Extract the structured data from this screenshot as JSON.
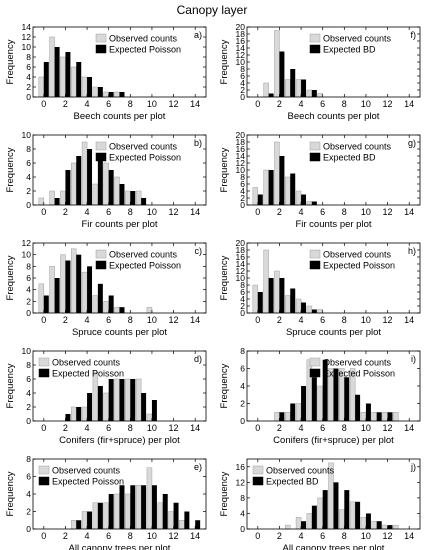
{
  "figure_title": "Canopy layer",
  "colors": {
    "observed": "#d9d9d9",
    "expected": "#000000",
    "frame": "#000000"
  },
  "chart_data": [
    {
      "type": "bar",
      "panel_label": "a)",
      "xlabel": "Beech counts per plot",
      "ylabel": "Frequency",
      "xlim": [
        -1,
        15
      ],
      "ylim": [
        0,
        14
      ],
      "xticks": [
        0,
        2,
        4,
        6,
        8,
        10,
        12,
        14
      ],
      "yticks": [
        0,
        2,
        4,
        6,
        8,
        10,
        12,
        14
      ],
      "legend_position": "top-right",
      "x": [
        0,
        1,
        2,
        3,
        4,
        5,
        6,
        7,
        8
      ],
      "series": [
        {
          "name": "Observed counts",
          "values": [
            4,
            12,
            8,
            6,
            4,
            2,
            1,
            1,
            0
          ]
        },
        {
          "name": "Expected Poisson",
          "values": [
            7,
            10,
            9,
            7,
            4,
            2,
            1,
            1,
            0
          ]
        }
      ]
    },
    {
      "type": "bar",
      "panel_label": "f)",
      "xlabel": "Beech counts per plot",
      "ylabel": "Frequency",
      "xlim": [
        -1,
        15
      ],
      "ylim": [
        0,
        20
      ],
      "xticks": [
        0,
        2,
        4,
        6,
        8,
        10,
        12,
        14
      ],
      "yticks": [
        0,
        2,
        4,
        6,
        8,
        10,
        12,
        14,
        16,
        18,
        20
      ],
      "legend_position": "top-right",
      "x": [
        0,
        1,
        2,
        3,
        4,
        5,
        6,
        7
      ],
      "series": [
        {
          "name": "Observed counts",
          "values": [
            0,
            4,
            19,
            5,
            5,
            2,
            1,
            0
          ]
        },
        {
          "name": "Expected BD",
          "values": [
            0,
            1,
            13,
            8,
            5,
            2,
            0,
            0
          ]
        }
      ]
    },
    {
      "type": "bar",
      "panel_label": "b)",
      "xlabel": "Fir counts per plot",
      "ylabel": "Frequency",
      "xlim": [
        -1,
        15
      ],
      "ylim": [
        0,
        10
      ],
      "xticks": [
        0,
        2,
        4,
        6,
        8,
        10,
        12,
        14
      ],
      "yticks": [
        0,
        2,
        4,
        6,
        8,
        10
      ],
      "legend_position": "top-right",
      "x": [
        0,
        1,
        2,
        3,
        4,
        5,
        6,
        7,
        8,
        9,
        10
      ],
      "series": [
        {
          "name": "Observed counts",
          "values": [
            1,
            2,
            2,
            6,
            9,
            3,
            6,
            4,
            2,
            2,
            0
          ]
        },
        {
          "name": "Expected Poisson",
          "values": [
            0,
            1,
            5,
            7,
            8,
            7,
            5,
            3,
            2,
            1,
            0
          ]
        }
      ]
    },
    {
      "type": "bar",
      "panel_label": "g)",
      "xlabel": "Fir counts per plot",
      "ylabel": "Frequency",
      "xlim": [
        -1,
        15
      ],
      "ylim": [
        0,
        20
      ],
      "xticks": [
        0,
        2,
        4,
        6,
        8,
        10,
        12,
        14
      ],
      "yticks": [
        0,
        2,
        4,
        6,
        8,
        10,
        12,
        14,
        16,
        18,
        20
      ],
      "legend_position": "top-right",
      "x": [
        0,
        1,
        2,
        3,
        4,
        5,
        6
      ],
      "series": [
        {
          "name": "Observed counts",
          "values": [
            5,
            10,
            18,
            8,
            4,
            1,
            0
          ]
        },
        {
          "name": "Expected BD",
          "values": [
            3,
            10,
            14,
            9,
            3,
            1,
            0
          ]
        }
      ]
    },
    {
      "type": "bar",
      "panel_label": "c)",
      "xlabel": "Spruce counts per plot",
      "ylabel": "Frequency",
      "xlim": [
        -1,
        15
      ],
      "ylim": [
        0,
        12
      ],
      "xticks": [
        0,
        2,
        4,
        6,
        8,
        10,
        12,
        14
      ],
      "yticks": [
        0,
        2,
        4,
        6,
        8,
        10,
        12
      ],
      "legend_position": "top-right",
      "x": [
        0,
        1,
        2,
        3,
        4,
        5,
        6,
        7,
        8,
        9,
        10
      ],
      "series": [
        {
          "name": "Observed counts",
          "values": [
            5,
            8,
            10,
            11,
            7,
            3,
            2,
            1,
            0,
            0,
            1
          ]
        },
        {
          "name": "Expected Poisson",
          "values": [
            3,
            6,
            9,
            10,
            8,
            5,
            3,
            1,
            0,
            0,
            0
          ]
        }
      ]
    },
    {
      "type": "bar",
      "panel_label": "h)",
      "xlabel": "Spruce counts per plot",
      "ylabel": "Frequency",
      "xlim": [
        -1,
        15
      ],
      "ylim": [
        0,
        20
      ],
      "xticks": [
        0,
        2,
        4,
        6,
        8,
        10,
        12,
        14
      ],
      "yticks": [
        0,
        2,
        4,
        6,
        8,
        10,
        12,
        14,
        16,
        18,
        20
      ],
      "legend_position": "top-right",
      "x": [
        0,
        1,
        2,
        3,
        4,
        5,
        6,
        7
      ],
      "series": [
        {
          "name": "Observed counts",
          "values": [
            8,
            18,
            12,
            5,
            4,
            2,
            1,
            0
          ]
        },
        {
          "name": "Expected Poisson",
          "values": [
            6,
            10,
            10,
            7,
            3,
            1,
            0,
            0
          ]
        }
      ]
    },
    {
      "type": "bar",
      "panel_label": "d)",
      "xlabel": "Conifers (fir+spruce) per plot",
      "ylabel": "Frequency",
      "xlim": [
        -1,
        15
      ],
      "ylim": [
        0,
        10
      ],
      "xticks": [
        0,
        2,
        4,
        6,
        8,
        10,
        12,
        14
      ],
      "yticks": [
        0,
        2,
        4,
        6,
        8,
        10
      ],
      "legend_position": "top-left",
      "x": [
        2,
        3,
        4,
        5,
        6,
        7,
        8,
        9,
        10,
        11
      ],
      "series": [
        {
          "name": "Observed counts",
          "values": [
            0,
            2,
            2,
            7,
            4,
            6,
            6,
            6,
            1,
            0
          ]
        },
        {
          "name": "Expected Poisson",
          "values": [
            1,
            2,
            4,
            5,
            6,
            6,
            6,
            4,
            3,
            0
          ]
        }
      ]
    },
    {
      "type": "bar",
      "panel_label": "i)",
      "xlabel": "Conifers (fir+spruce) per plot",
      "ylabel": "Frequency",
      "xlim": [
        -1,
        15
      ],
      "ylim": [
        0,
        8
      ],
      "xticks": [
        0,
        2,
        4,
        6,
        8,
        10,
        12,
        14
      ],
      "yticks": [
        0,
        2,
        4,
        6,
        8
      ],
      "legend_position": "top-right",
      "x": [
        2,
        3,
        4,
        5,
        6,
        7,
        8,
        9,
        10,
        11,
        12,
        13
      ],
      "series": [
        {
          "name": "Observed counts",
          "values": [
            1,
            1,
            2,
            7,
            4,
            6,
            6,
            6,
            1,
            1,
            1,
            1
          ]
        },
        {
          "name": "Expected Poisson",
          "values": [
            1,
            2,
            4,
            5,
            7,
            6,
            5,
            3,
            2,
            1,
            1,
            0
          ]
        }
      ]
    },
    {
      "type": "bar",
      "panel_label": "e)",
      "xlabel": "All canopy trees per plot",
      "ylabel": "Frequency",
      "xlim": [
        -1,
        15
      ],
      "ylim": [
        0,
        8
      ],
      "xticks": [
        0,
        2,
        4,
        6,
        8,
        10,
        12,
        14
      ],
      "yticks": [
        0,
        2,
        4,
        6,
        8
      ],
      "legend_position": "top-left",
      "x": [
        3,
        4,
        5,
        6,
        7,
        8,
        9,
        10,
        11,
        12,
        13,
        14
      ],
      "series": [
        {
          "name": "Observed counts",
          "values": [
            1,
            2,
            3,
            3,
            4,
            4,
            5,
            7,
            3,
            2,
            1,
            0
          ]
        },
        {
          "name": "Expected Poisson",
          "values": [
            1,
            2,
            3,
            4,
            5,
            5,
            5,
            5,
            4,
            3,
            2,
            1
          ]
        }
      ]
    },
    {
      "type": "bar",
      "panel_label": "j)",
      "xlabel": "All canopy trees per plot",
      "ylabel": "Frequency",
      "xlim": [
        -1,
        15
      ],
      "ylim": [
        0,
        18
      ],
      "xticks": [
        0,
        2,
        4,
        6,
        8,
        10,
        12,
        14
      ],
      "yticks": [
        0,
        4,
        8,
        12,
        16
      ],
      "legend_position": "top-left",
      "x": [
        3,
        4,
        5,
        6,
        7,
        8,
        9,
        10,
        11,
        12,
        13
      ],
      "series": [
        {
          "name": "Observed counts",
          "values": [
            1,
            3,
            4,
            8,
            17,
            5,
            7,
            3,
            2,
            1,
            1
          ]
        },
        {
          "name": "Expected BD",
          "values": [
            0,
            2,
            6,
            10,
            12,
            10,
            7,
            4,
            2,
            1,
            0
          ]
        }
      ]
    }
  ]
}
